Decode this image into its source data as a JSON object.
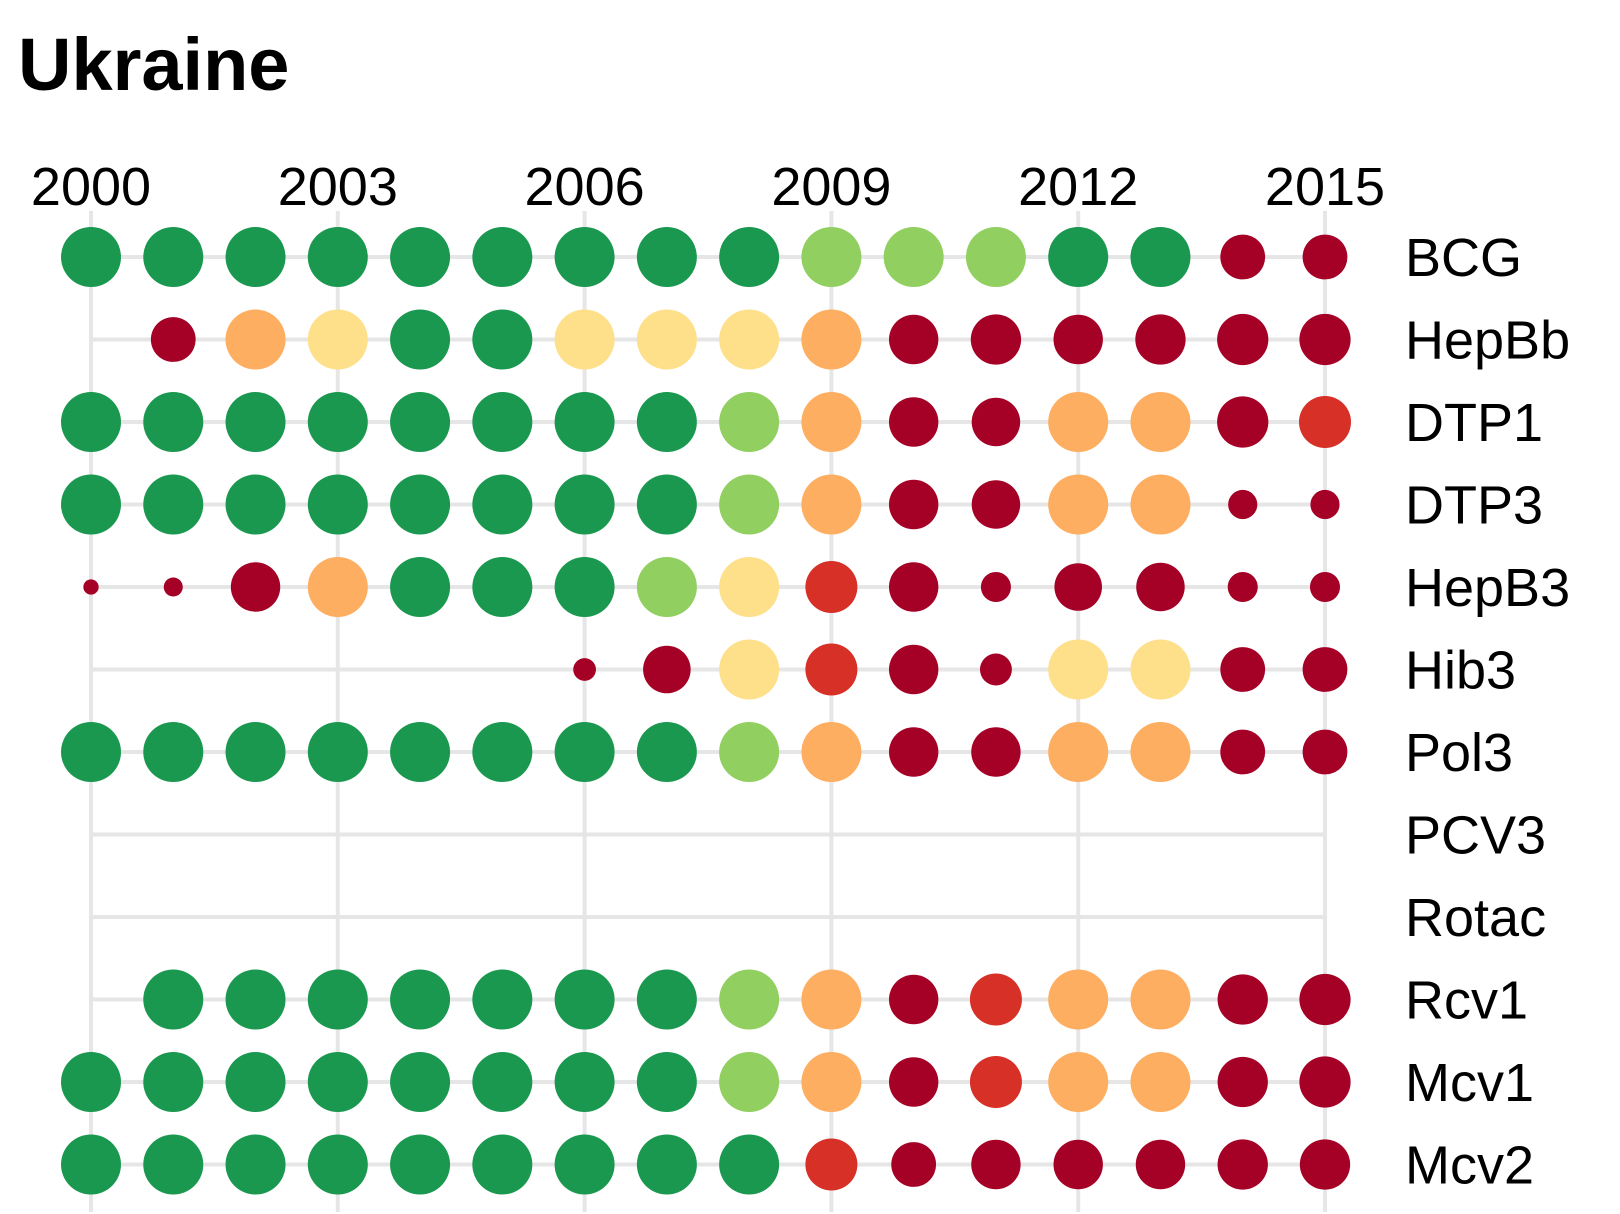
{
  "chart_data": {
    "type": "scatter",
    "title": "Ukraine",
    "x_ticks": [
      "2000",
      "2003",
      "2006",
      "2009",
      "2012",
      "2015"
    ],
    "years": [
      2000,
      2001,
      2002,
      2003,
      2004,
      2005,
      2006,
      2007,
      2008,
      2009,
      2010,
      2011,
      2012,
      2013,
      2014,
      2015
    ],
    "xlim": [
      2000,
      2015
    ],
    "colors": {
      "very_high": "#1a9850",
      "high": "#91cf60",
      "mid_high": "#fee08b",
      "mid": "#fdae61",
      "low": "#d73027",
      "very_low": "#a50026"
    },
    "series": [
      {
        "name": "BCG",
        "values": [
          97,
          97,
          97,
          97,
          97,
          97,
          97,
          97,
          96,
          88,
          88,
          88,
          96,
          96,
          40,
          40
        ]
      },
      {
        "name": "HepBb",
        "values": [
          null,
          40,
          60,
          80,
          96,
          96,
          80,
          80,
          80,
          60,
          45,
          46,
          45,
          46,
          47,
          47
        ]
      },
      {
        "name": "DTP1",
        "values": [
          98,
          98,
          98,
          98,
          98,
          98,
          98,
          98,
          90,
          60,
          45,
          44,
          60,
          60,
          47,
          48
        ]
      },
      {
        "name": "DTP3",
        "values": [
          98,
          98,
          98,
          98,
          98,
          98,
          98,
          98,
          90,
          60,
          45,
          44,
          60,
          60,
          23,
          23
        ]
      },
      {
        "name": "HepB3",
        "values": [
          8,
          12,
          45,
          60,
          96,
          96,
          96,
          90,
          80,
          48,
          45,
          24,
          43,
          44,
          24,
          24
        ]
      },
      {
        "name": "Hib3",
        "values": [
          null,
          null,
          null,
          null,
          null,
          null,
          16,
          43,
          80,
          48,
          45,
          26,
          80,
          80,
          40,
          40
        ]
      },
      {
        "name": "Pol3",
        "values": [
          98,
          98,
          98,
          98,
          98,
          98,
          98,
          98,
          90,
          60,
          45,
          45,
          60,
          60,
          40,
          40
        ]
      },
      {
        "name": "PCV3",
        "values": [
          null,
          null,
          null,
          null,
          null,
          null,
          null,
          null,
          null,
          null,
          null,
          null,
          null,
          null,
          null,
          null
        ]
      },
      {
        "name": "Rotac",
        "values": [
          null,
          null,
          null,
          null,
          null,
          null,
          null,
          null,
          null,
          null,
          null,
          null,
          null,
          null,
          null,
          null
        ]
      },
      {
        "name": "Rcv1",
        "values": [
          null,
          98,
          98,
          98,
          98,
          98,
          98,
          98,
          90,
          60,
          45,
          50,
          60,
          60,
          46,
          47
        ]
      },
      {
        "name": "Mcv1",
        "values": [
          98,
          98,
          98,
          98,
          98,
          98,
          98,
          98,
          90,
          60,
          45,
          50,
          60,
          60,
          46,
          47
        ]
      },
      {
        "name": "Mcv2",
        "values": [
          98,
          98,
          98,
          98,
          98,
          98,
          98,
          98,
          96,
          50,
          40,
          45,
          45,
          45,
          46,
          46
        ]
      }
    ]
  }
}
